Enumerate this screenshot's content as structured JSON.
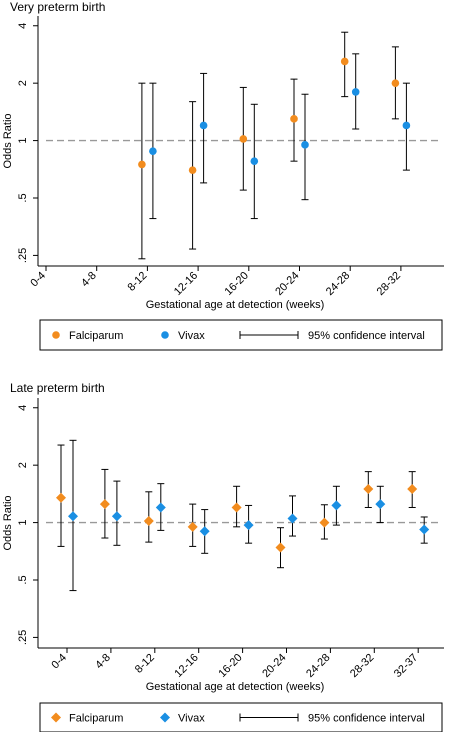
{
  "chart_data": [
    {
      "type": "scatter",
      "title": "Very preterm birth",
      "xlabel": "Gestational age at detection (weeks)",
      "ylabel": "Odds Ratio",
      "y_scale": "log",
      "ylim": [
        0.22,
        4.5
      ],
      "y_ticks": [
        0.25,
        0.5,
        1,
        2,
        4
      ],
      "y_tick_labels": [
        ".25",
        ".5",
        "1",
        "2",
        "4"
      ],
      "reference_line": 1,
      "grid": false,
      "legend_position": "bottom",
      "categories": [
        "0-4",
        "4-8",
        "8-12",
        "12-16",
        "16-20",
        "20-24",
        "24-28",
        "28-32"
      ],
      "marker": "circle",
      "series": [
        {
          "name": "Falciparum",
          "color": "#f28c1e",
          "points": [
            {
              "category": "8-12",
              "or": 0.75,
              "lo": 0.24,
              "hi": 2.0
            },
            {
              "category": "12-16",
              "or": 0.7,
              "lo": 0.27,
              "hi": 1.6
            },
            {
              "category": "16-20",
              "or": 1.02,
              "lo": 0.55,
              "hi": 1.9
            },
            {
              "category": "20-24",
              "or": 1.3,
              "lo": 0.78,
              "hi": 2.1
            },
            {
              "category": "24-28",
              "or": 2.6,
              "lo": 1.7,
              "hi": 3.7
            },
            {
              "category": "28-32",
              "or": 2.0,
              "lo": 1.3,
              "hi": 3.1
            }
          ]
        },
        {
          "name": "Vivax",
          "color": "#1a8fe3",
          "points": [
            {
              "category": "8-12",
              "or": 0.88,
              "lo": 0.39,
              "hi": 2.0
            },
            {
              "category": "12-16",
              "or": 1.2,
              "lo": 0.6,
              "hi": 2.25
            },
            {
              "category": "16-20",
              "or": 0.78,
              "lo": 0.39,
              "hi": 1.55
            },
            {
              "category": "20-24",
              "or": 0.95,
              "lo": 0.49,
              "hi": 1.75
            },
            {
              "category": "24-28",
              "or": 1.8,
              "lo": 1.15,
              "hi": 2.85
            },
            {
              "category": "28-32",
              "or": 1.2,
              "lo": 0.7,
              "hi": 2.0
            }
          ]
        }
      ],
      "legend": {
        "items": [
          "Falciparum",
          "Vivax",
          "95% confidence interval"
        ]
      }
    },
    {
      "type": "scatter",
      "title": "Late preterm birth",
      "xlabel": "Gestational age at detection (weeks)",
      "ylabel": "Odds Ratio",
      "y_scale": "log",
      "ylim": [
        0.22,
        4.5
      ],
      "y_ticks": [
        0.25,
        0.5,
        1,
        2,
        4
      ],
      "y_tick_labels": [
        ".25",
        ".5",
        "1",
        "2",
        "4"
      ],
      "reference_line": 1,
      "grid": false,
      "legend_position": "bottom",
      "categories": [
        "0-4",
        "4-8",
        "8-12",
        "12-16",
        "16-20",
        "20-24",
        "24-28",
        "28-32",
        "32-37"
      ],
      "marker": "diamond",
      "series": [
        {
          "name": "Falciparum",
          "color": "#f28c1e",
          "points": [
            {
              "category": "0-4",
              "or": 1.35,
              "lo": 0.75,
              "hi": 2.55
            },
            {
              "category": "4-8",
              "or": 1.25,
              "lo": 0.83,
              "hi": 1.9
            },
            {
              "category": "8-12",
              "or": 1.02,
              "lo": 0.79,
              "hi": 1.45
            },
            {
              "category": "12-16",
              "or": 0.95,
              "lo": 0.75,
              "hi": 1.25
            },
            {
              "category": "16-20",
              "or": 1.2,
              "lo": 0.95,
              "hi": 1.55
            },
            {
              "category": "20-24",
              "or": 0.74,
              "lo": 0.58,
              "hi": 0.94
            },
            {
              "category": "24-28",
              "or": 1.0,
              "lo": 0.82,
              "hi": 1.24
            },
            {
              "category": "28-32",
              "or": 1.5,
              "lo": 1.2,
              "hi": 1.85
            },
            {
              "category": "32-37",
              "or": 1.5,
              "lo": 1.2,
              "hi": 1.85
            }
          ]
        },
        {
          "name": "Vivax",
          "color": "#1a8fe3",
          "points": [
            {
              "category": "0-4",
              "or": 1.08,
              "lo": 0.44,
              "hi": 2.7
            },
            {
              "category": "4-8",
              "or": 1.08,
              "lo": 0.76,
              "hi": 1.65
            },
            {
              "category": "8-12",
              "or": 1.2,
              "lo": 0.91,
              "hi": 1.6
            },
            {
              "category": "12-16",
              "or": 0.9,
              "lo": 0.69,
              "hi": 1.17
            },
            {
              "category": "16-20",
              "or": 0.97,
              "lo": 0.78,
              "hi": 1.23
            },
            {
              "category": "20-24",
              "or": 1.05,
              "lo": 0.85,
              "hi": 1.38
            },
            {
              "category": "24-28",
              "or": 1.23,
              "lo": 0.97,
              "hi": 1.55
            },
            {
              "category": "28-32",
              "or": 1.25,
              "lo": 1.0,
              "hi": 1.55
            },
            {
              "category": "32-37",
              "or": 0.92,
              "lo": 0.78,
              "hi": 1.07
            }
          ]
        }
      ],
      "legend": {
        "items": [
          "Falciparum",
          "Vivax",
          "95% confidence interval"
        ]
      }
    }
  ]
}
